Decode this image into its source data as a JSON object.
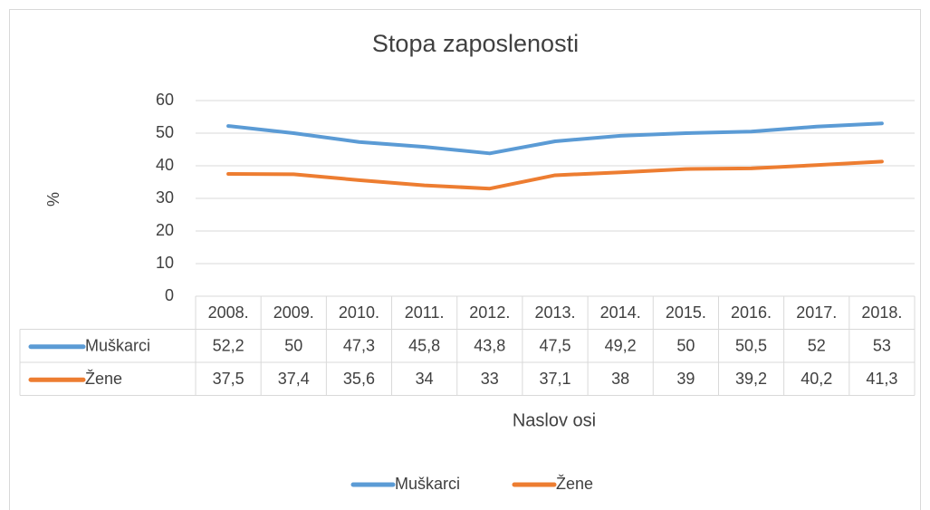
{
  "chart_data": {
    "type": "line",
    "title": "Stopa zaposlenosti",
    "xlabel": "Naslov osi",
    "ylabel": "%",
    "categories": [
      "2008.",
      "2009.",
      "2010.",
      "2011.",
      "2012.",
      "2013.",
      "2014.",
      "2015.",
      "2016.",
      "2017.",
      "2018."
    ],
    "series": [
      {
        "name": "Muškarci",
        "color": "#5b9bd5",
        "values": [
          52.2,
          50,
          47.3,
          45.8,
          43.8,
          47.5,
          49.2,
          50,
          50.5,
          52,
          53
        ],
        "value_labels": [
          "52,2",
          "50",
          "47,3",
          "45,8",
          "43,8",
          "47,5",
          "49,2",
          "50",
          "50,5",
          "52",
          "53"
        ]
      },
      {
        "name": "Žene",
        "color": "#ed7d31",
        "values": [
          37.5,
          37.4,
          35.6,
          34,
          33,
          37.1,
          38,
          39,
          39.2,
          40.2,
          41.3
        ],
        "value_labels": [
          "37,5",
          "37,4",
          "35,6",
          "34",
          "33",
          "37,1",
          "38",
          "39",
          "39,2",
          "40,2",
          "41,3"
        ]
      }
    ],
    "ylim": [
      0,
      60
    ],
    "yticks": [
      0,
      10,
      20,
      30,
      40,
      50,
      60
    ],
    "grid": true,
    "legend": "bottom"
  }
}
